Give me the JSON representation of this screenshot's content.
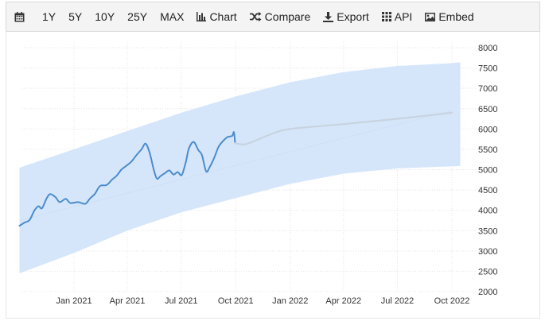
{
  "toolbar": {
    "calendar_icon": "calendar-icon",
    "ranges": [
      "1Y",
      "5Y",
      "10Y",
      "25Y",
      "MAX"
    ],
    "chart_label": "Chart",
    "compare_label": "Compare",
    "export_label": "Export",
    "api_label": "API",
    "embed_label": "Embed"
  },
  "colors": {
    "series": "#4a8ccc",
    "forecast": "#c8d3e0",
    "band": "#d6e6fa",
    "trend": "#cfe0f7"
  },
  "chart_data": {
    "type": "line",
    "title": "",
    "xlabel": "",
    "ylabel": "",
    "ylim": [
      2000,
      8000
    ],
    "y_ticks": [
      2000,
      2500,
      3000,
      3500,
      4000,
      4500,
      5000,
      5500,
      6000,
      6500,
      7000,
      7500,
      8000
    ],
    "x_ticks": [
      "Jan 2021",
      "Apr 2021",
      "Jul 2021",
      "Oct 2021",
      "Jan 2022",
      "Apr 2022",
      "Jul 2022",
      "Oct 2022"
    ],
    "grid": true,
    "series": [
      {
        "role": "historical",
        "points": [
          [
            "2020-10-01",
            3620
          ],
          [
            "2020-10-10",
            3700
          ],
          [
            "2020-10-18",
            3760
          ],
          [
            "2020-10-26",
            3990
          ],
          [
            "2020-11-02",
            4100
          ],
          [
            "2020-11-08",
            4050
          ],
          [
            "2020-11-16",
            4300
          ],
          [
            "2020-11-22",
            4400
          ],
          [
            "2020-12-01",
            4320
          ],
          [
            "2020-12-08",
            4200
          ],
          [
            "2020-12-18",
            4280
          ],
          [
            "2020-12-26",
            4180
          ],
          [
            "2021-01-08",
            4200
          ],
          [
            "2021-01-20",
            4160
          ],
          [
            "2021-01-28",
            4290
          ],
          [
            "2021-02-05",
            4400
          ],
          [
            "2021-02-14",
            4600
          ],
          [
            "2021-02-25",
            4620
          ],
          [
            "2021-03-06",
            4750
          ],
          [
            "2021-03-14",
            4850
          ],
          [
            "2021-03-22",
            5000
          ],
          [
            "2021-03-29",
            5080
          ],
          [
            "2021-04-08",
            5200
          ],
          [
            "2021-04-16",
            5350
          ],
          [
            "2021-04-25",
            5500
          ],
          [
            "2021-05-02",
            5640
          ],
          [
            "2021-05-09",
            5400
          ],
          [
            "2021-05-16",
            4980
          ],
          [
            "2021-05-21",
            4780
          ],
          [
            "2021-05-27",
            4840
          ],
          [
            "2021-06-04",
            4920
          ],
          [
            "2021-06-11",
            4980
          ],
          [
            "2021-06-18",
            4880
          ],
          [
            "2021-06-25",
            4940
          ],
          [
            "2021-07-02",
            4870
          ],
          [
            "2021-07-09",
            5200
          ],
          [
            "2021-07-14",
            5520
          ],
          [
            "2021-07-22",
            5680
          ],
          [
            "2021-07-30",
            5480
          ],
          [
            "2021-08-05",
            5360
          ],
          [
            "2021-08-12",
            4960
          ],
          [
            "2021-08-18",
            5060
          ],
          [
            "2021-08-26",
            5300
          ],
          [
            "2021-09-02",
            5560
          ],
          [
            "2021-09-10",
            5710
          ],
          [
            "2021-09-17",
            5800
          ],
          [
            "2021-09-25",
            5830
          ],
          [
            "2021-09-28",
            5920
          ],
          [
            "2021-09-30",
            5650
          ]
        ]
      },
      {
        "role": "forecast",
        "points": [
          [
            "2021-09-30",
            5650
          ],
          [
            "2021-10-15",
            5620
          ],
          [
            "2021-11-01",
            5700
          ],
          [
            "2021-12-01",
            5880
          ],
          [
            "2022-01-01",
            6000
          ],
          [
            "2022-04-01",
            6120
          ],
          [
            "2022-07-01",
            6250
          ],
          [
            "2022-10-01",
            6400
          ]
        ]
      }
    ],
    "trend": {
      "start": [
        "2020-10-01",
        3750
      ],
      "end": [
        "2022-10-01",
        6450
      ]
    },
    "band_upper": [
      [
        "2020-10-01",
        5050
      ],
      [
        "2021-01-01",
        5500
      ],
      [
        "2021-04-01",
        5950
      ],
      [
        "2021-07-01",
        6400
      ],
      [
        "2021-10-01",
        6800
      ],
      [
        "2022-01-01",
        7150
      ],
      [
        "2022-04-01",
        7400
      ],
      [
        "2022-07-01",
        7550
      ],
      [
        "2022-10-01",
        7620
      ],
      [
        "2022-10-15",
        7640
      ]
    ],
    "band_lower": [
      [
        "2020-10-01",
        2450
      ],
      [
        "2021-01-01",
        2950
      ],
      [
        "2021-04-01",
        3500
      ],
      [
        "2021-07-01",
        3950
      ],
      [
        "2021-10-01",
        4300
      ],
      [
        "2022-01-01",
        4650
      ],
      [
        "2022-04-01",
        4900
      ],
      [
        "2022-07-01",
        5030
      ],
      [
        "2022-10-01",
        5080
      ],
      [
        "2022-10-15",
        5090
      ]
    ]
  }
}
